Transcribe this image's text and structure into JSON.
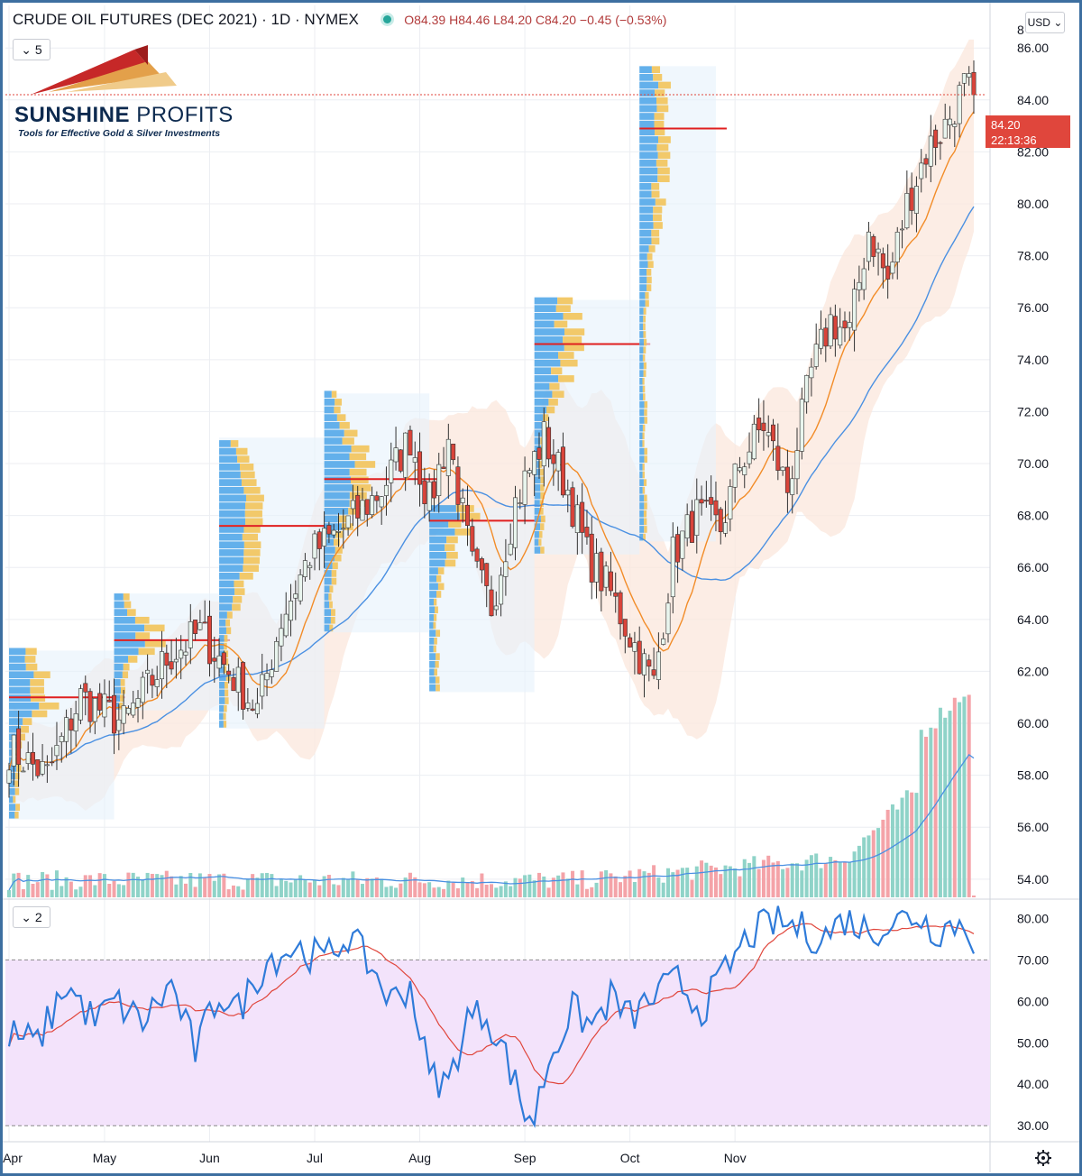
{
  "header": {
    "title": "CRUDE OIL FUTURES (DEC 2021) · 1D · NYMEX",
    "ohlc": "O84.39 H84.46 L84.20 C84.20 −0.45 (−0.53%)",
    "currency": "USD",
    "indicator_count_main": "5",
    "indicator_count_rsi": "2"
  },
  "price_label": {
    "value": "84.20",
    "timer": "22:13:36"
  },
  "logo": {
    "name_bold": "SUNSHINE",
    "name_light": "PROFITS",
    "tagline": "Tools for Effective Gold & Silver Investments"
  },
  "settings_icon": "gear-icon",
  "colors": {
    "up": "#26a69a",
    "down": "#ef5350",
    "sma": "#4a90e2",
    "ema": "#f28c28",
    "rsi": "#2f7bd9",
    "rsi_ma": "#e0463c",
    "rsi_band": "#f3e3fb",
    "bollinger": "#fbe7dc",
    "poc": "#e01f1f"
  },
  "chart_data": [
    {
      "type": "candlestick",
      "title": "CRUDE OIL FUTURES (DEC 2021)",
      "y_ticks": [
        "86.00",
        "84.00",
        "82.00",
        "80.00",
        "78.00",
        "76.00",
        "74.00",
        "72.00",
        "70.00",
        "68.00",
        "66.00",
        "64.00",
        "62.00",
        "60.00",
        "58.00",
        "56.00",
        "54.00"
      ],
      "top_tick_partial": "8",
      "x_ticks": [
        "Apr",
        "May",
        "Jun",
        "Jul",
        "Aug",
        "Sep",
        "Oct",
        "Nov"
      ],
      "ylim": [
        53.3,
        87.5
      ],
      "last_price": 84.2,
      "candle_anchors": [
        [
          0,
          59
        ],
        [
          8,
          58
        ],
        [
          15,
          61
        ],
        [
          24,
          60
        ],
        [
          33,
          62.5
        ],
        [
          40,
          63.5
        ],
        [
          48,
          61.5
        ],
        [
          52,
          60.5
        ],
        [
          57,
          64
        ],
        [
          63,
          66.5
        ],
        [
          70,
          67.5
        ],
        [
          78,
          69
        ],
        [
          84,
          71
        ],
        [
          88,
          68.5
        ],
        [
          92,
          71
        ],
        [
          97,
          66
        ],
        [
          101,
          64.5
        ],
        [
          106,
          68.5
        ],
        [
          112,
          71
        ],
        [
          117,
          69
        ],
        [
          121,
          66.5
        ],
        [
          126,
          65
        ],
        [
          131,
          63
        ],
        [
          135,
          61.5
        ],
        [
          139,
          66.5
        ],
        [
          144,
          68
        ],
        [
          149,
          67.5
        ],
        [
          153,
          70
        ],
        [
          158,
          71.5
        ],
        [
          163,
          69
        ],
        [
          168,
          73.5
        ],
        [
          172,
          75.5
        ],
        [
          176,
          75
        ],
        [
          180,
          79
        ],
        [
          184,
          77
        ],
        [
          188,
          80
        ],
        [
          192,
          82
        ],
        [
          196,
          83
        ],
        [
          200,
          84.5
        ],
        [
          202,
          84.2
        ]
      ],
      "volume_profile_poc": [
        61.0,
        63.2,
        67.6,
        69.4,
        67.8,
        74.6,
        82.9
      ]
    },
    {
      "type": "line",
      "title": "RSI",
      "y_ticks": [
        "80.00",
        "70.00",
        "60.00",
        "50.00",
        "40.00",
        "30.00"
      ],
      "ylim": [
        27,
        84
      ],
      "bands": [
        30,
        70
      ],
      "rsi_anchors": [
        [
          0,
          52
        ],
        [
          6,
          50
        ],
        [
          12,
          64
        ],
        [
          18,
          55
        ],
        [
          22,
          60
        ],
        [
          28,
          55
        ],
        [
          34,
          64
        ],
        [
          39,
          48
        ],
        [
          44,
          62
        ],
        [
          48,
          58
        ],
        [
          54,
          70
        ],
        [
          60,
          73
        ],
        [
          66,
          70
        ],
        [
          71,
          76
        ],
        [
          76,
          68
        ],
        [
          80,
          60
        ],
        [
          84,
          64
        ],
        [
          88,
          42
        ],
        [
          92,
          40
        ],
        [
          96,
          56
        ],
        [
          100,
          57
        ],
        [
          104,
          47
        ],
        [
          108,
          33
        ],
        [
          110,
          32
        ],
        [
          113,
          46
        ],
        [
          118,
          58
        ],
        [
          122,
          54
        ],
        [
          126,
          61
        ],
        [
          130,
          56
        ],
        [
          135,
          61
        ],
        [
          140,
          65
        ],
        [
          145,
          58
        ],
        [
          150,
          67
        ],
        [
          155,
          76
        ],
        [
          160,
          79
        ],
        [
          165,
          78
        ],
        [
          170,
          75
        ],
        [
          175,
          80
        ],
        [
          180,
          77
        ],
        [
          185,
          79
        ],
        [
          190,
          81
        ],
        [
          194,
          77
        ],
        [
          198,
          79
        ],
        [
          201,
          77
        ],
        [
          202,
          75
        ]
      ]
    }
  ]
}
